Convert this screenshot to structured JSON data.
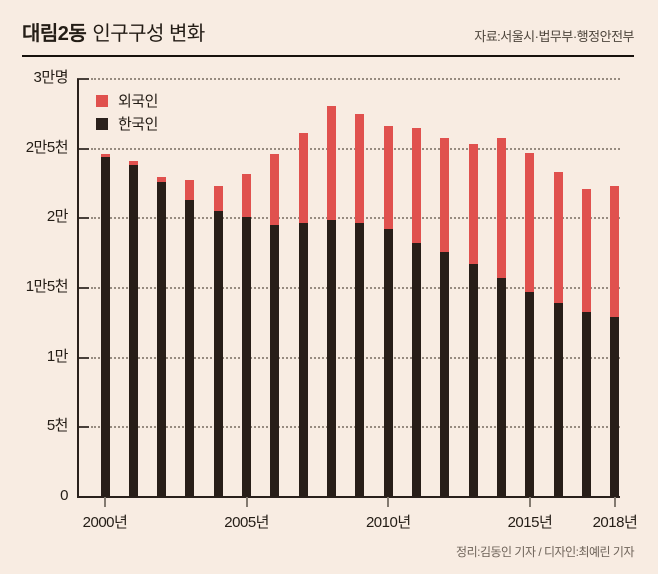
{
  "header": {
    "title_bold": "대림2동",
    "title_rest": "인구구성 변화",
    "source": "자료:서울시·법무부·행정안전부"
  },
  "legend": {
    "foreigner_label": "외국인",
    "korean_label": "한국인"
  },
  "footer": {
    "credit": "정리:김동인 기자 / 디자인:최예린 기자"
  },
  "colors": {
    "background": "#f8ece2",
    "korean_bar": "#281e18",
    "foreigner_bar": "#e0514e",
    "axis": "#2a211c",
    "grid_dots": "#978b80"
  },
  "chart_data": {
    "type": "bar",
    "stacked": true,
    "title": "대림2동 인구구성 변화",
    "categories": [
      "2000",
      "2001",
      "2002",
      "2003",
      "2004",
      "2005",
      "2006",
      "2007",
      "2008",
      "2009",
      "2010",
      "2011",
      "2012",
      "2013",
      "2014",
      "2015",
      "2016",
      "2017",
      "2018"
    ],
    "series": [
      {
        "name": "한국인",
        "color": "#281e18",
        "values": [
          24400,
          23800,
          22600,
          21300,
          20500,
          20100,
          19500,
          19700,
          19900,
          19700,
          19200,
          18200,
          17600,
          16700,
          15700,
          14700,
          13900,
          13300,
          12900
        ]
      },
      {
        "name": "외국인",
        "color": "#e0514e",
        "values": [
          200,
          300,
          400,
          1450,
          1850,
          3100,
          5100,
          6450,
          8150,
          7800,
          7450,
          8300,
          8150,
          8600,
          10100,
          10000,
          9450,
          8800,
          9400
        ]
      }
    ],
    "ylim": [
      0,
      30000
    ],
    "yticks": [
      {
        "value": 0,
        "label": "0"
      },
      {
        "value": 5000,
        "label": "5천"
      },
      {
        "value": 10000,
        "label": "1만"
      },
      {
        "value": 15000,
        "label": "1만5천"
      },
      {
        "value": 20000,
        "label": "2만"
      },
      {
        "value": 25000,
        "label": "2만5천"
      },
      {
        "value": 30000,
        "label": "3만명"
      }
    ],
    "xticks": [
      {
        "category_index": 0,
        "label": "2000년"
      },
      {
        "category_index": 5,
        "label": "2005년"
      },
      {
        "category_index": 10,
        "label": "2010년"
      },
      {
        "category_index": 15,
        "label": "2015년"
      },
      {
        "category_index": 18,
        "label": "2018년"
      }
    ],
    "legend_position": "top-left-inside",
    "grid": "horizontal-dotted"
  }
}
